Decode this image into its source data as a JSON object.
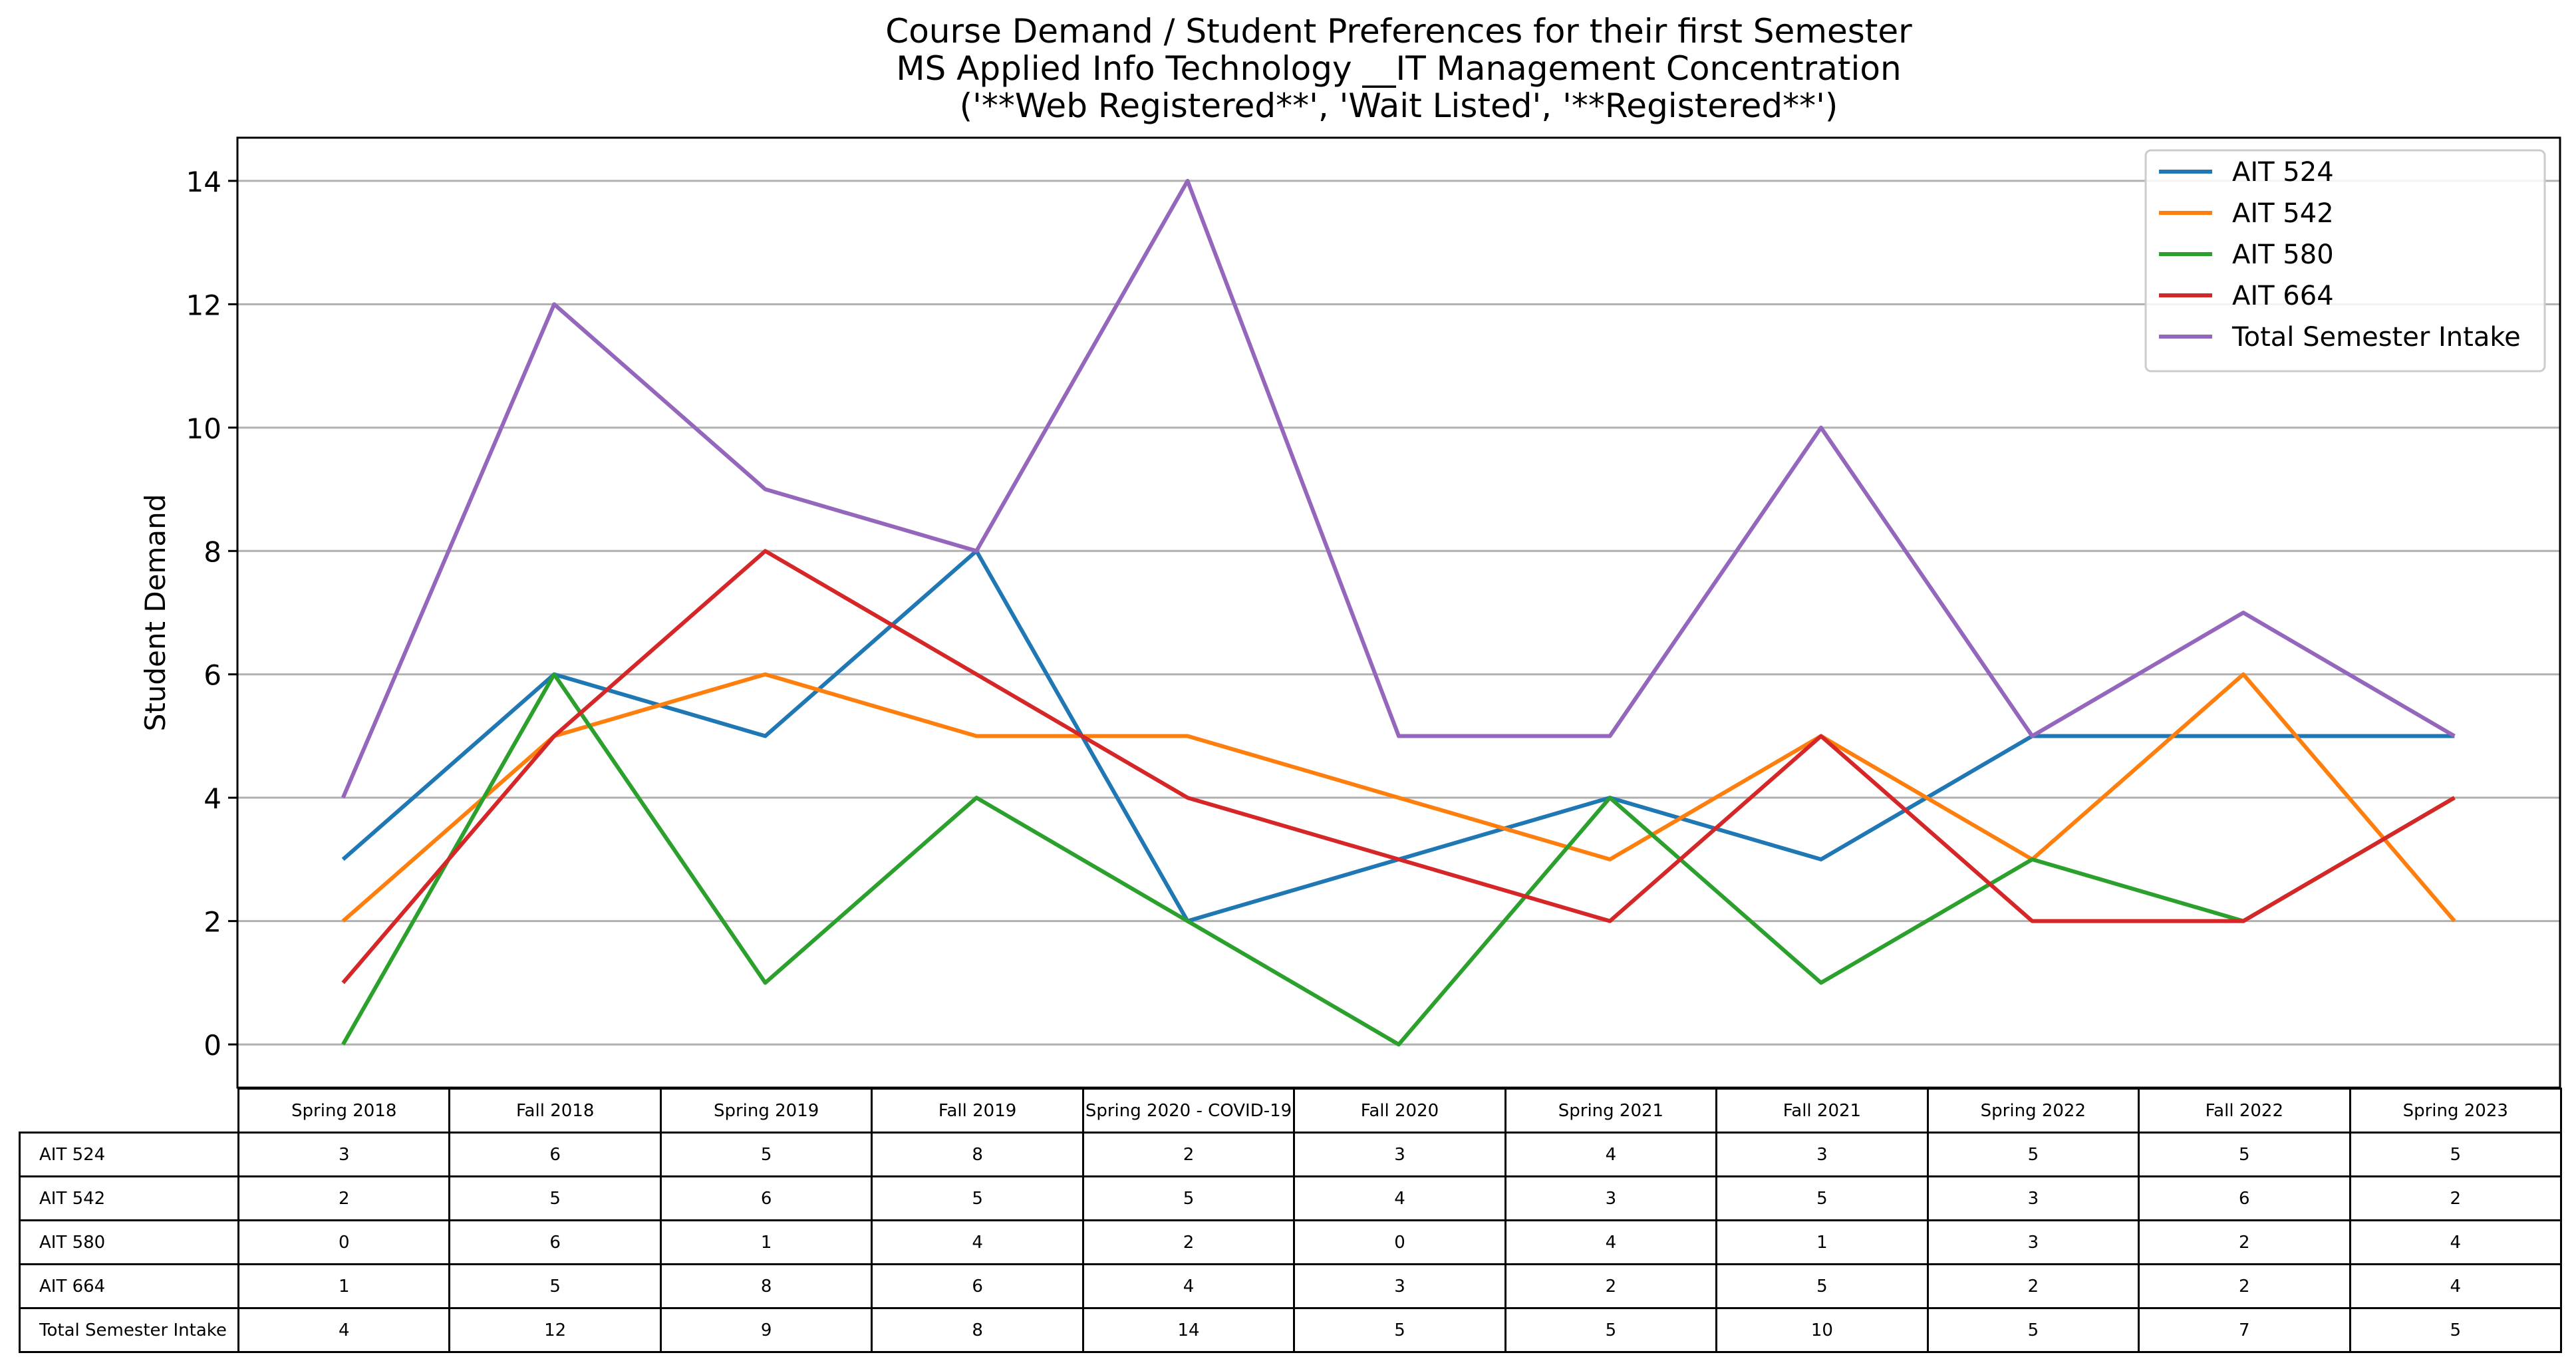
{
  "chart_data": {
    "type": "line",
    "title": [
      "Course Demand / Student Preferences for their first Semester",
      "MS Applied Info Technology __IT Management Concentration",
      "('**Web Registered**', 'Wait Listed', '**Registered**')"
    ],
    "xlabel": "",
    "ylabel": "Student Demand",
    "ylim": [
      -0.7,
      14.7
    ],
    "yticks": [
      0,
      2,
      4,
      6,
      8,
      10,
      12,
      14
    ],
    "grid": "horizontal",
    "legend": "top-right",
    "categories": [
      "Spring 2018",
      "Fall 2018",
      "Spring 2019",
      "Fall 2019",
      "Spring 2020 - COVID-19",
      "Fall 2020",
      "Spring 2021",
      "Fall 2021",
      "Spring 2022",
      "Fall 2022",
      "Spring 2023"
    ],
    "series": [
      {
        "name": "AIT 524",
        "color": "#1f77b4",
        "values": [
          3,
          6,
          5,
          8,
          2,
          3,
          4,
          3,
          5,
          5,
          5
        ]
      },
      {
        "name": "AIT 542",
        "color": "#ff7f0e",
        "values": [
          2,
          5,
          6,
          5,
          5,
          4,
          3,
          5,
          3,
          6,
          2
        ]
      },
      {
        "name": "AIT 580",
        "color": "#2ca02c",
        "values": [
          0,
          6,
          1,
          4,
          2,
          0,
          4,
          1,
          3,
          2,
          4
        ]
      },
      {
        "name": "AIT 664",
        "color": "#d62728",
        "values": [
          1,
          5,
          8,
          6,
          4,
          3,
          2,
          5,
          2,
          2,
          4
        ]
      },
      {
        "name": "Total Semester Intake",
        "color": "#9467bd",
        "values": [
          4,
          12,
          9,
          8,
          14,
          5,
          5,
          10,
          5,
          7,
          5
        ]
      }
    ]
  }
}
